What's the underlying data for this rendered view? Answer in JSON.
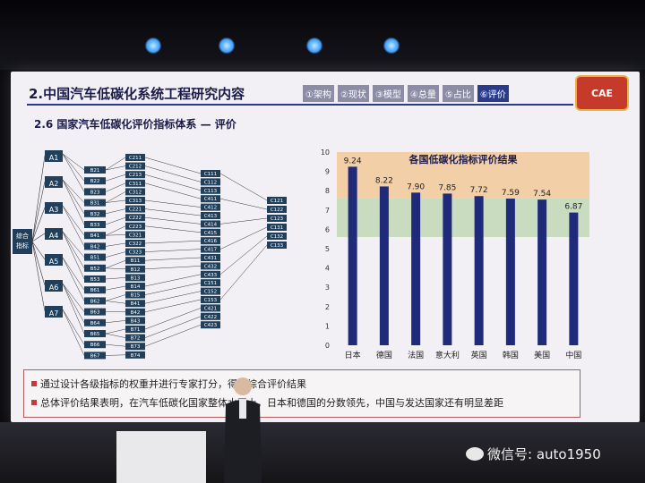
{
  "slide": {
    "title": "2.中国汽车低碳化系统工程研究内容",
    "tabs": [
      "①架构",
      "②现状",
      "③模型",
      "④总量",
      "⑤占比",
      "⑥评价"
    ],
    "active_tab": 5,
    "logo_text": "CAE",
    "subtitle": "2.6 国家汽车低碳化评价指标体系 — 评价",
    "bullets": [
      "通过设计各级指标的权重并进行专家打分，得到综合评价结果",
      "总体评价结果表明，在汽车低碳化国家整体水平上，日本和德国的分数领先，中国与发达国家还有明显差距"
    ]
  },
  "diagram": {
    "root": "综合\n指标",
    "level1": [
      "A1",
      "A2",
      "A3",
      "A4",
      "A5",
      "A6",
      "A7"
    ],
    "level2": [
      "B21",
      "B22",
      "B23",
      "B31",
      "B32",
      "B33",
      "B41",
      "B42",
      "B51",
      "B52",
      "B53",
      "B61",
      "B62",
      "B63",
      "B64",
      "B65",
      "B66",
      "B67"
    ],
    "level3": [
      "C211",
      "C212",
      "C213",
      "C311",
      "C312",
      "C313",
      "C221",
      "C222",
      "C223",
      "C321",
      "C322",
      "C323",
      "B11",
      "B12",
      "B13",
      "B14",
      "B15",
      "B41",
      "B42",
      "B43",
      "B71",
      "B72",
      "B73",
      "B74"
    ],
    "level4": [
      "C111",
      "C112",
      "C113",
      "C411",
      "C412",
      "C413",
      "C414",
      "C415",
      "C416",
      "C417",
      "C431",
      "C432",
      "C433",
      "C151",
      "C152",
      "C153",
      "C421",
      "C422",
      "C423"
    ],
    "level5": [
      "C121",
      "C122",
      "C123",
      "C131",
      "C132",
      "C133"
    ]
  },
  "chart_data": {
    "type": "bar",
    "title": "各国低碳化指标评价结果",
    "categories": [
      "日本",
      "德国",
      "法国",
      "意大利",
      "英国",
      "韩国",
      "美国",
      "中国"
    ],
    "values": [
      9.24,
      8.22,
      7.9,
      7.85,
      7.72,
      7.59,
      7.54,
      6.87
    ],
    "ylim": [
      0,
      10
    ],
    "yticks": [
      "0",
      "1",
      "2",
      "3",
      "4",
      "5",
      "6",
      "7",
      "8",
      "9",
      "10"
    ],
    "bands": [
      {
        "from": 7.6,
        "to": 10,
        "color": "#f3cfa7"
      },
      {
        "from": 5.6,
        "to": 7.6,
        "color": "#c9dcc0"
      }
    ],
    "bar_color": "#1f2a7a",
    "grid": false
  },
  "watermark": "微信号: auto1950"
}
